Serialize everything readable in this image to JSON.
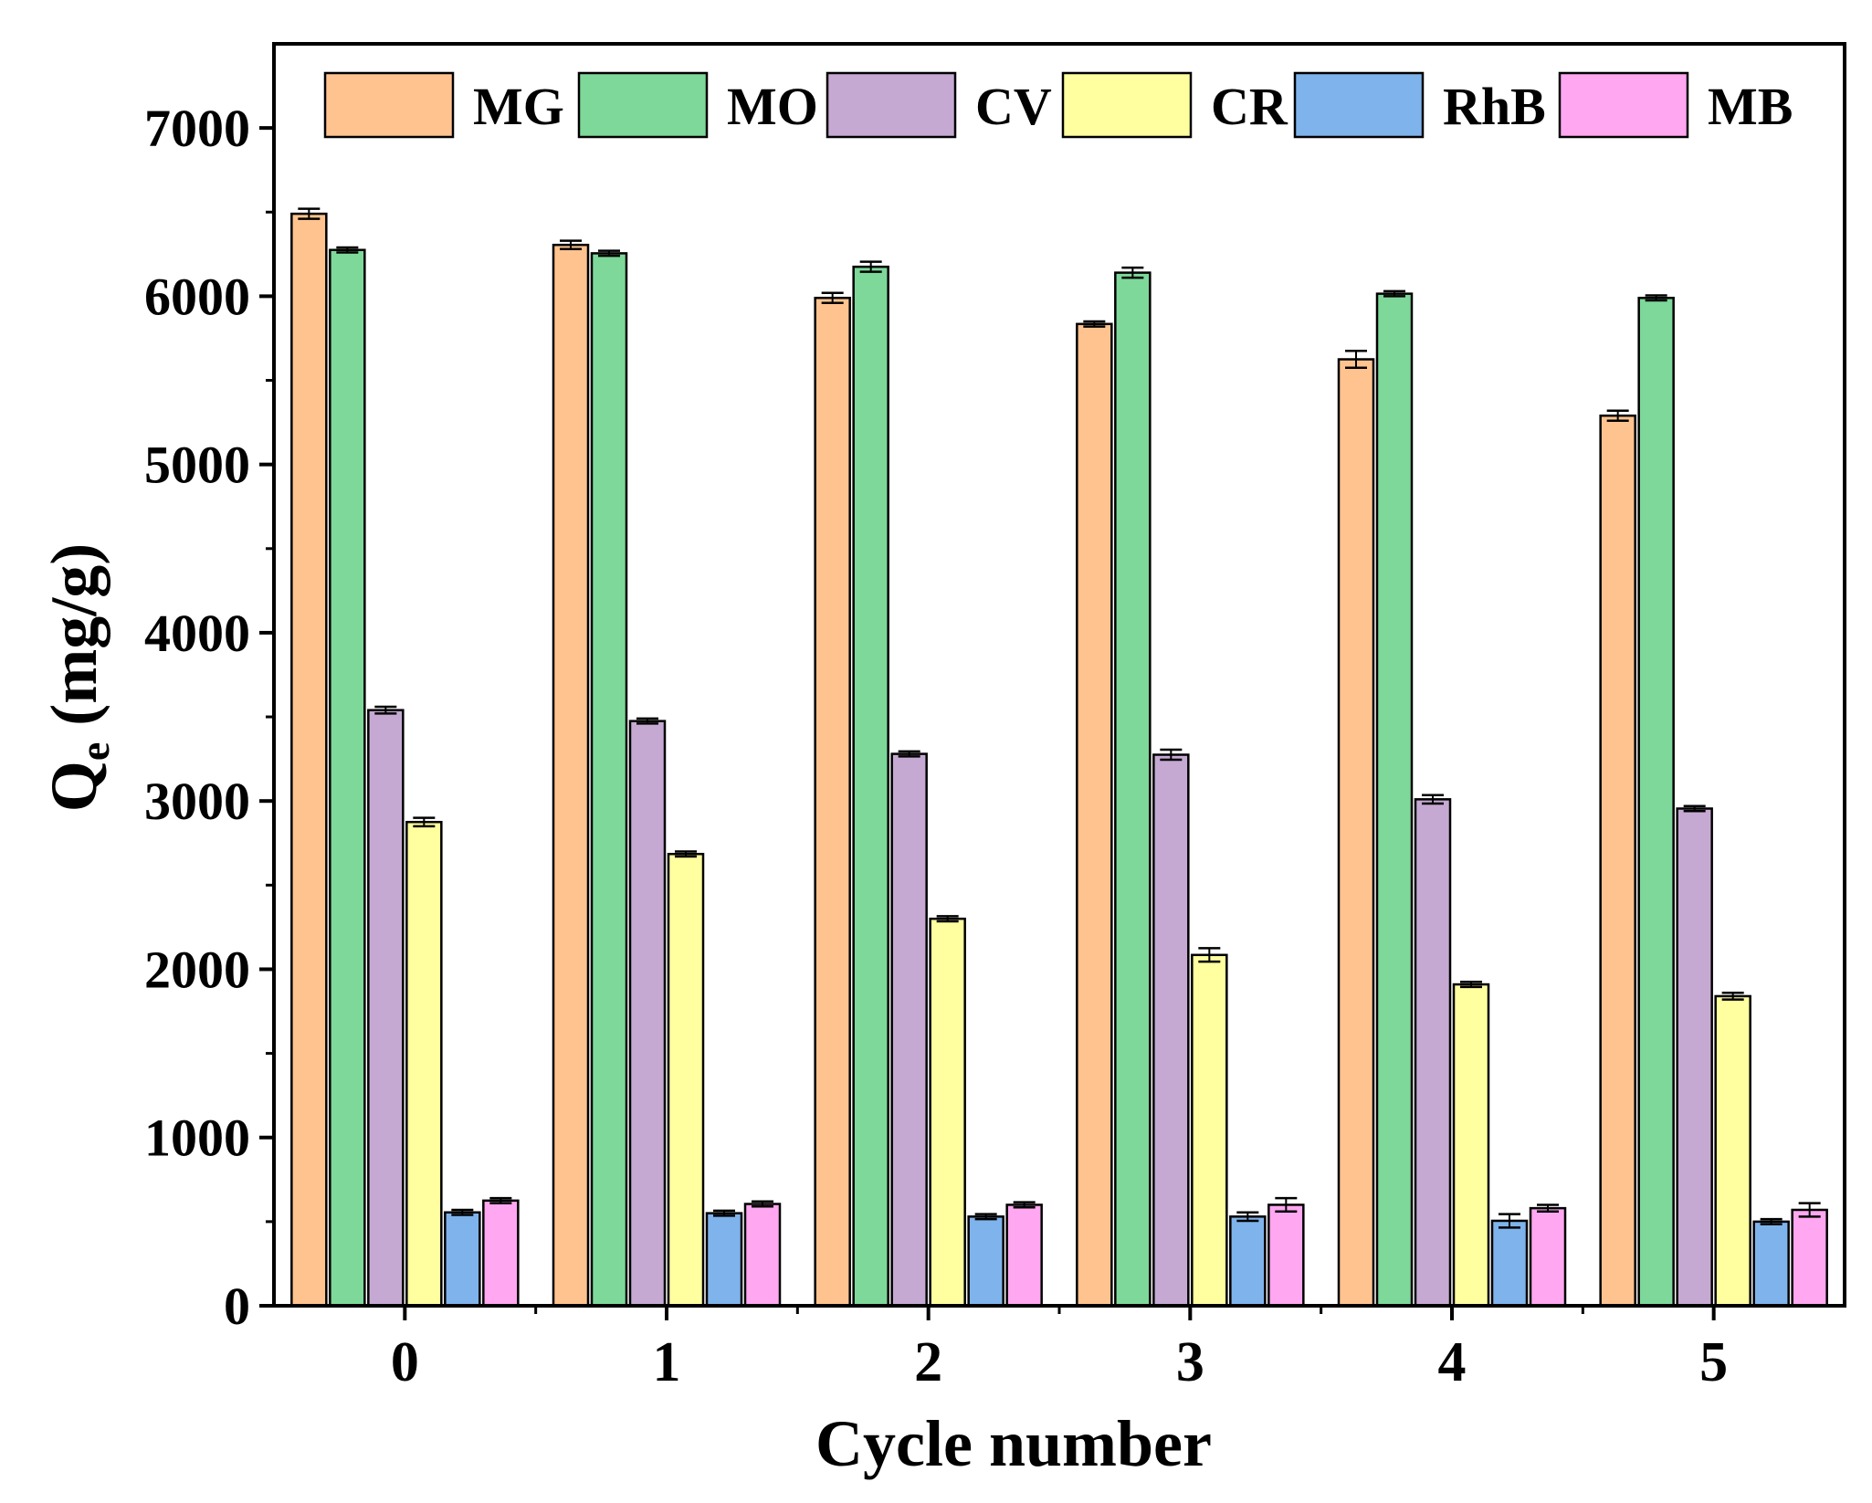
{
  "chart_data": {
    "type": "bar",
    "title": "",
    "xlabel": "Cycle number",
    "ylabel_main": "Q",
    "ylabel_sub": "e",
    "ylabel_unit": " (mg/g)",
    "categories": [
      "0",
      "1",
      "2",
      "3",
      "4",
      "5"
    ],
    "ylim": [
      0,
      7500
    ],
    "yticks": [
      "0",
      "1000",
      "2000",
      "3000",
      "4000",
      "5000",
      "6000",
      "7000"
    ],
    "ytick_values": [
      0,
      1000,
      2000,
      3000,
      4000,
      5000,
      6000,
      7000
    ],
    "legend_position": "top",
    "error_bars": true,
    "series": [
      {
        "name": "MG",
        "color": "#FFC38F",
        "values": [
          6490,
          6305,
          5990,
          5835,
          5625,
          5290
        ],
        "errors": [
          30,
          25,
          30,
          15,
          50,
          30
        ]
      },
      {
        "name": "MO",
        "color": "#7DD89A",
        "values": [
          6275,
          6255,
          6175,
          6140,
          6015,
          5990
        ],
        "errors": [
          15,
          15,
          30,
          30,
          15,
          15
        ]
      },
      {
        "name": "CV",
        "color": "#C6A9D2",
        "values": [
          3540,
          3475,
          3280,
          3275,
          3010,
          2955
        ],
        "errors": [
          20,
          15,
          15,
          30,
          25,
          15
        ]
      },
      {
        "name": "CR",
        "color": "#FFFFA0",
        "values": [
          2875,
          2685,
          2300,
          2085,
          1910,
          1840
        ],
        "errors": [
          25,
          15,
          15,
          40,
          15,
          20
        ]
      },
      {
        "name": "RhB",
        "color": "#7FB3EB",
        "values": [
          555,
          550,
          530,
          530,
          505,
          500
        ],
        "errors": [
          15,
          15,
          15,
          25,
          40,
          15
        ]
      },
      {
        "name": "MB",
        "color": "#FFA7F0",
        "values": [
          625,
          605,
          600,
          600,
          580,
          570
        ],
        "errors": [
          15,
          15,
          15,
          40,
          20,
          40
        ]
      }
    ]
  }
}
